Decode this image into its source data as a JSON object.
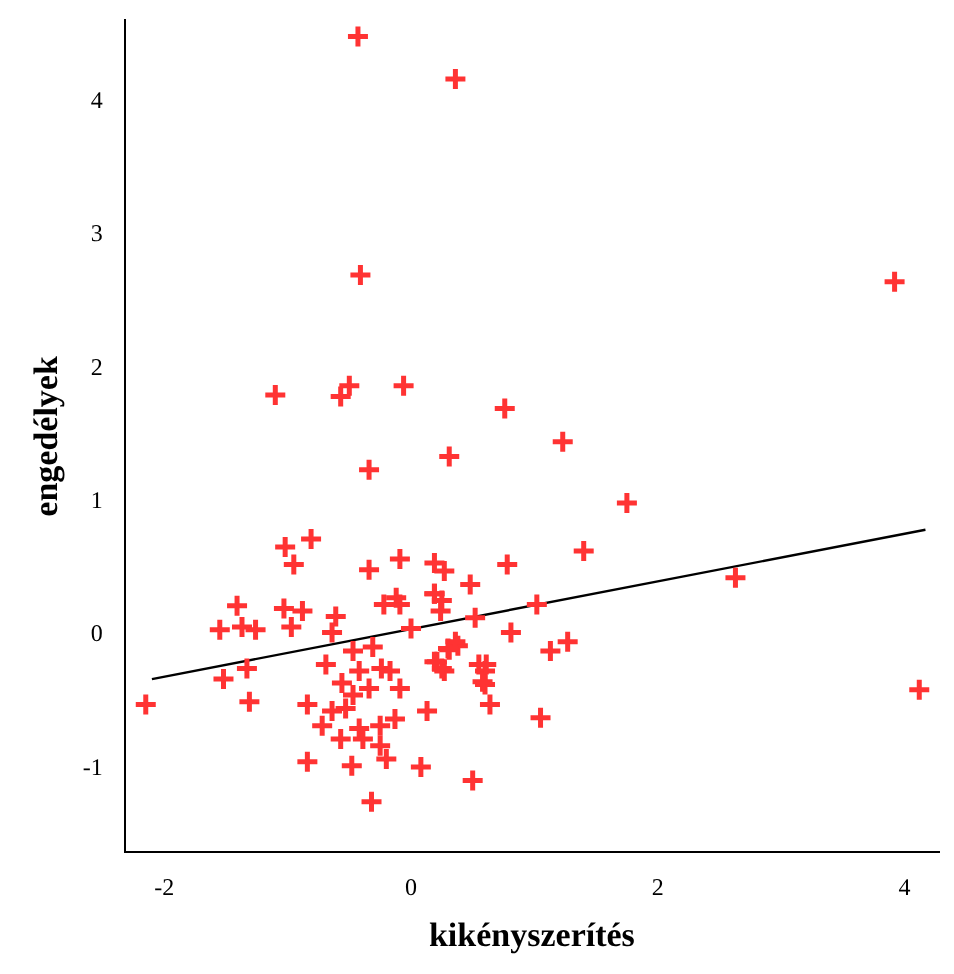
{
  "chart_data": {
    "type": "scatter",
    "xlabel": "kikényszerítés",
    "ylabel": "engedélyek",
    "xlim": [
      -2.32,
      4.28
    ],
    "ylim": [
      -1.63,
      4.61
    ],
    "xticks": [
      -2,
      0,
      2,
      4
    ],
    "yticks": [
      -1,
      0,
      1,
      2,
      3,
      4
    ],
    "grid": false,
    "legend": false,
    "marker": "cross",
    "series": [
      {
        "color": "#ff3333",
        "x": [
          -0.43,
          0.36,
          -0.41,
          3.92,
          -1.1,
          -0.57,
          -0.5,
          -0.06,
          0.76,
          1.23,
          -0.34,
          0.31,
          1.75,
          1.4,
          2.63,
          4.12,
          -2.15,
          -1.52,
          -1.31,
          -1.33,
          -1.55,
          -1.41,
          -1.37,
          -1.26,
          -1.02,
          -0.95,
          -0.81,
          -1.03,
          -0.88,
          -0.97,
          -0.61,
          -0.64,
          -0.69,
          -0.84,
          -0.84,
          -0.48,
          -0.32,
          -0.34,
          -0.09,
          0.19,
          0.27,
          0.48,
          0.78,
          0.81,
          -0.22,
          -0.12,
          -0.09,
          0.19,
          0.24,
          0.52,
          0.0,
          -0.47,
          -0.31,
          -0.42,
          -0.56,
          -0.24,
          -0.17,
          -0.09,
          -0.34,
          -0.47,
          -0.53,
          -0.64,
          -0.72,
          -0.57,
          -0.42,
          -0.25,
          -0.13,
          -0.39,
          -0.25,
          -0.2,
          0.13,
          0.08,
          0.5,
          0.21,
          0.31,
          0.27,
          0.38,
          0.55,
          0.6,
          0.64,
          0.6,
          1.02,
          1.13,
          1.27,
          1.05,
          0.25,
          0.58,
          0.61,
          0.36,
          0.3,
          0.19,
          0.25,
          0.19
        ],
        "values": [
          4.49,
          4.17,
          2.7,
          2.65,
          1.8,
          1.79,
          1.87,
          1.87,
          1.7,
          1.45,
          1.24,
          1.34,
          0.99,
          0.63,
          0.43,
          -0.41,
          -0.52,
          -0.33,
          -0.5,
          -0.25,
          0.04,
          0.22,
          0.06,
          0.04,
          0.66,
          0.53,
          0.72,
          0.2,
          0.18,
          0.06,
          0.14,
          0.02,
          -0.22,
          -0.52,
          -0.95,
          -0.98,
          -1.25,
          0.49,
          0.57,
          0.54,
          0.48,
          0.38,
          0.53,
          0.02,
          0.23,
          0.28,
          0.23,
          0.31,
          0.18,
          0.13,
          0.05,
          -0.12,
          -0.09,
          -0.27,
          -0.36,
          -0.25,
          -0.27,
          -0.4,
          -0.4,
          -0.45,
          -0.55,
          -0.57,
          -0.68,
          -0.78,
          -0.7,
          -0.68,
          -0.63,
          -0.78,
          -0.83,
          -0.93,
          -0.57,
          -0.99,
          -1.09,
          -0.2,
          -0.11,
          -0.27,
          -0.08,
          -0.22,
          -0.27,
          -0.52,
          -0.37,
          0.23,
          -0.12,
          -0.05,
          -0.62,
          -0.25,
          -0.35,
          -0.22,
          -0.05,
          -0.1,
          -0.2,
          0.26,
          0.31
        ]
      },
      {
        "type": "line",
        "color": "#000000",
        "marker": "none",
        "x": [
          -2.1,
          4.17
        ],
        "values": [
          -0.33,
          0.79
        ]
      }
    ]
  }
}
